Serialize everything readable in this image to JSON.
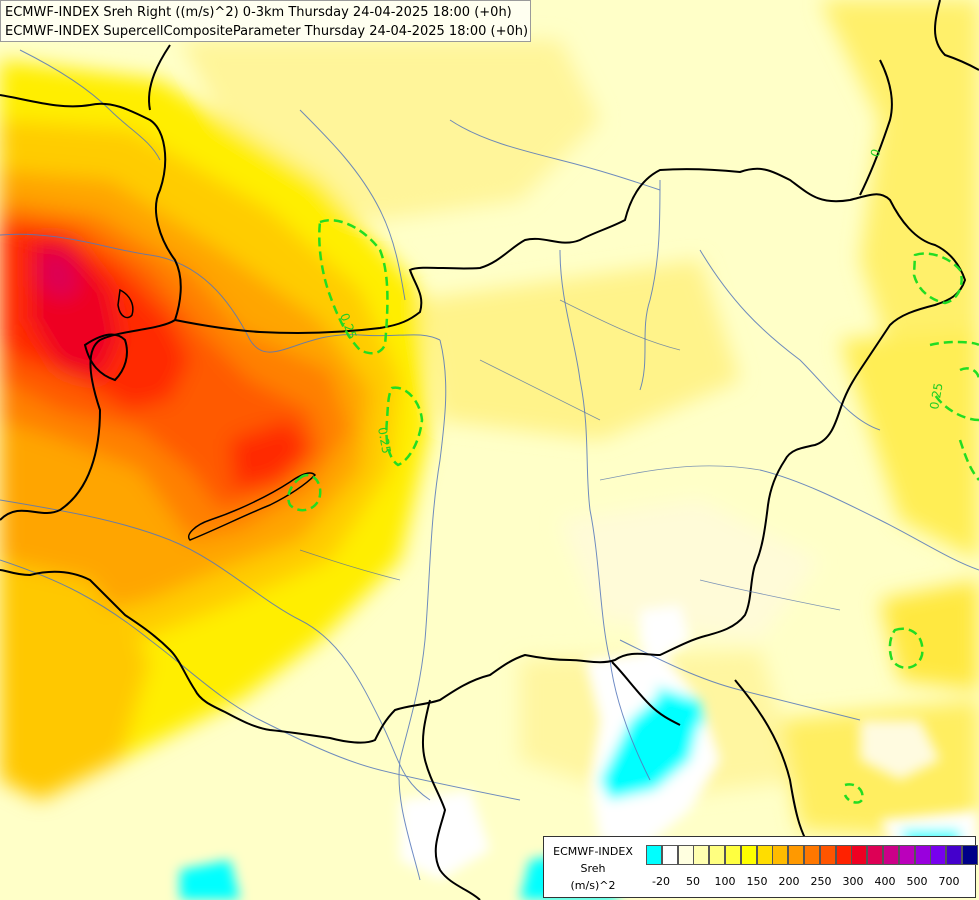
{
  "header": {
    "line1": "ECMWF-INDEX Sreh Right ((m/s)^2) 0-3km Thursday 24-04-2025 18:00 (+0h)",
    "line2": "ECMWF-INDEX SupercellCompositeParameter Thursday 24-04-2025 18:00 (+0h)"
  },
  "contours": {
    "label_0_25": "0.25",
    "color": "#22dd22"
  },
  "legend": {
    "title1": "ECMWF-INDEX",
    "title2": "Sreh",
    "title3": "(m/s)^2",
    "colors": [
      "#00ffff",
      "#ffffff",
      "#ffffe0",
      "#ffffb0",
      "#ffff80",
      "#ffff40",
      "#ffff00",
      "#ffdd00",
      "#ffbb00",
      "#ff9900",
      "#ff7700",
      "#ff5500",
      "#ff2200",
      "#ee0022",
      "#dd0055",
      "#cc0088",
      "#bb00bb",
      "#9900dd",
      "#7700ee",
      "#4400cc",
      "#000088"
    ],
    "ticks": [
      "-20",
      "50",
      "100",
      "150",
      "200",
      "250",
      "300",
      "400",
      "500",
      "700"
    ]
  }
}
